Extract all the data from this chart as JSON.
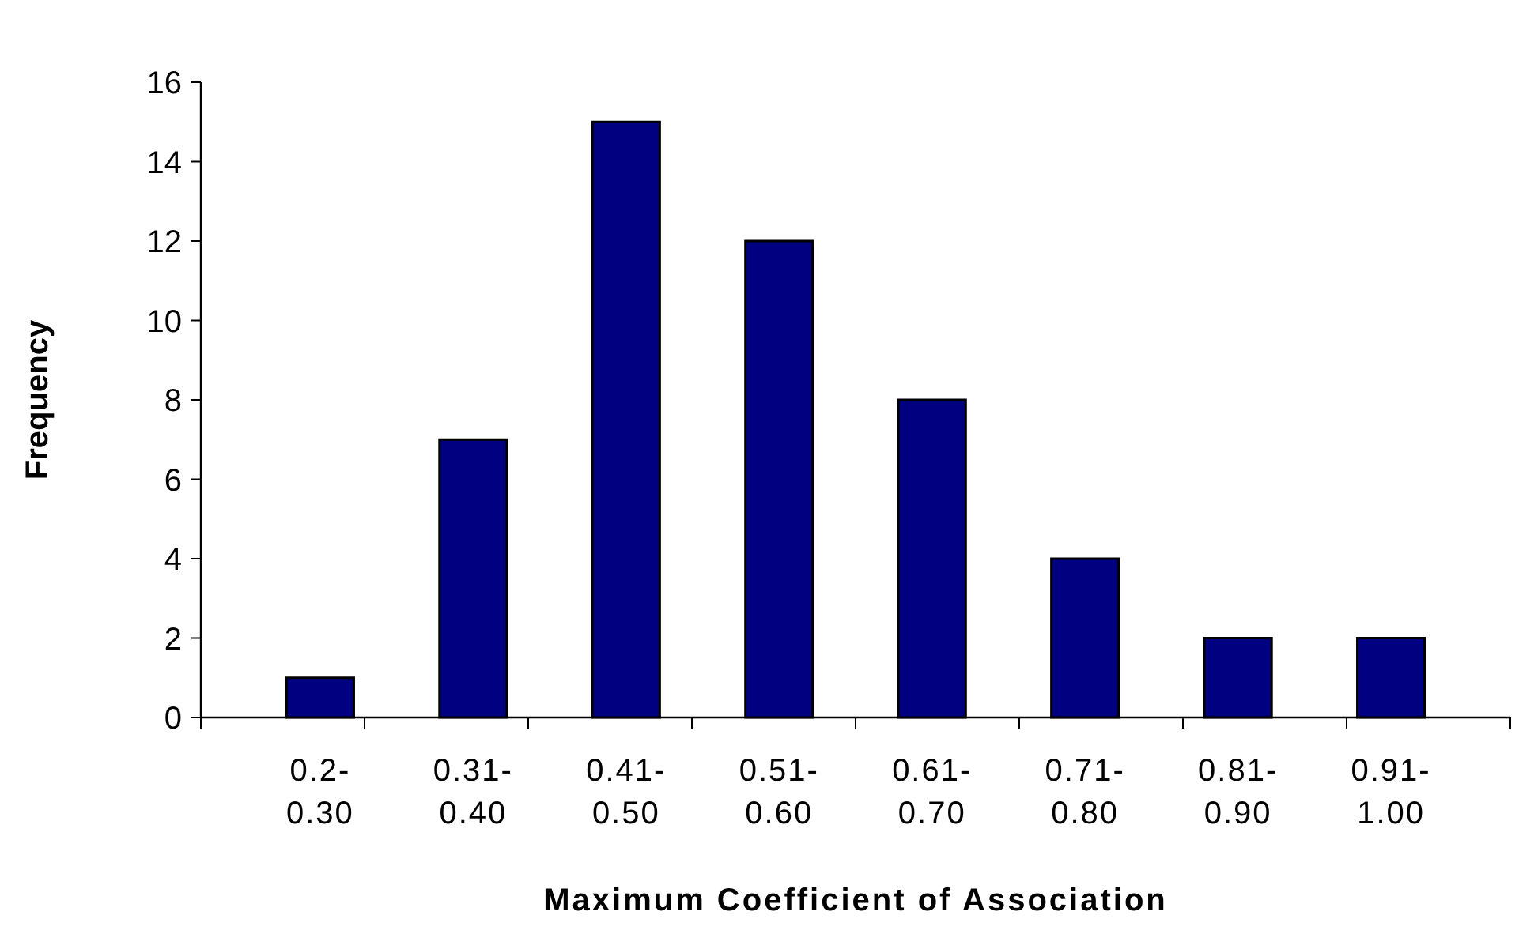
{
  "chart_data": {
    "type": "bar",
    "xlabel": "Maximum Coefficient of Association",
    "ylabel": "Frequency",
    "categories": [
      "0.2-\n0.30",
      "0.31-\n0.40",
      "0.41-\n0.50",
      "0.51-\n0.60",
      "0.61-\n0.70",
      "0.71-\n0.80",
      "0.81-\n0.90",
      "0.91-\n1.00"
    ],
    "values": [
      1,
      7,
      15,
      12,
      8,
      4,
      2,
      2
    ],
    "color": "#000080",
    "ylim": [
      0,
      16
    ],
    "yticks": [
      0,
      2,
      4,
      6,
      8,
      10,
      12,
      14,
      16
    ],
    "grid": false
  }
}
